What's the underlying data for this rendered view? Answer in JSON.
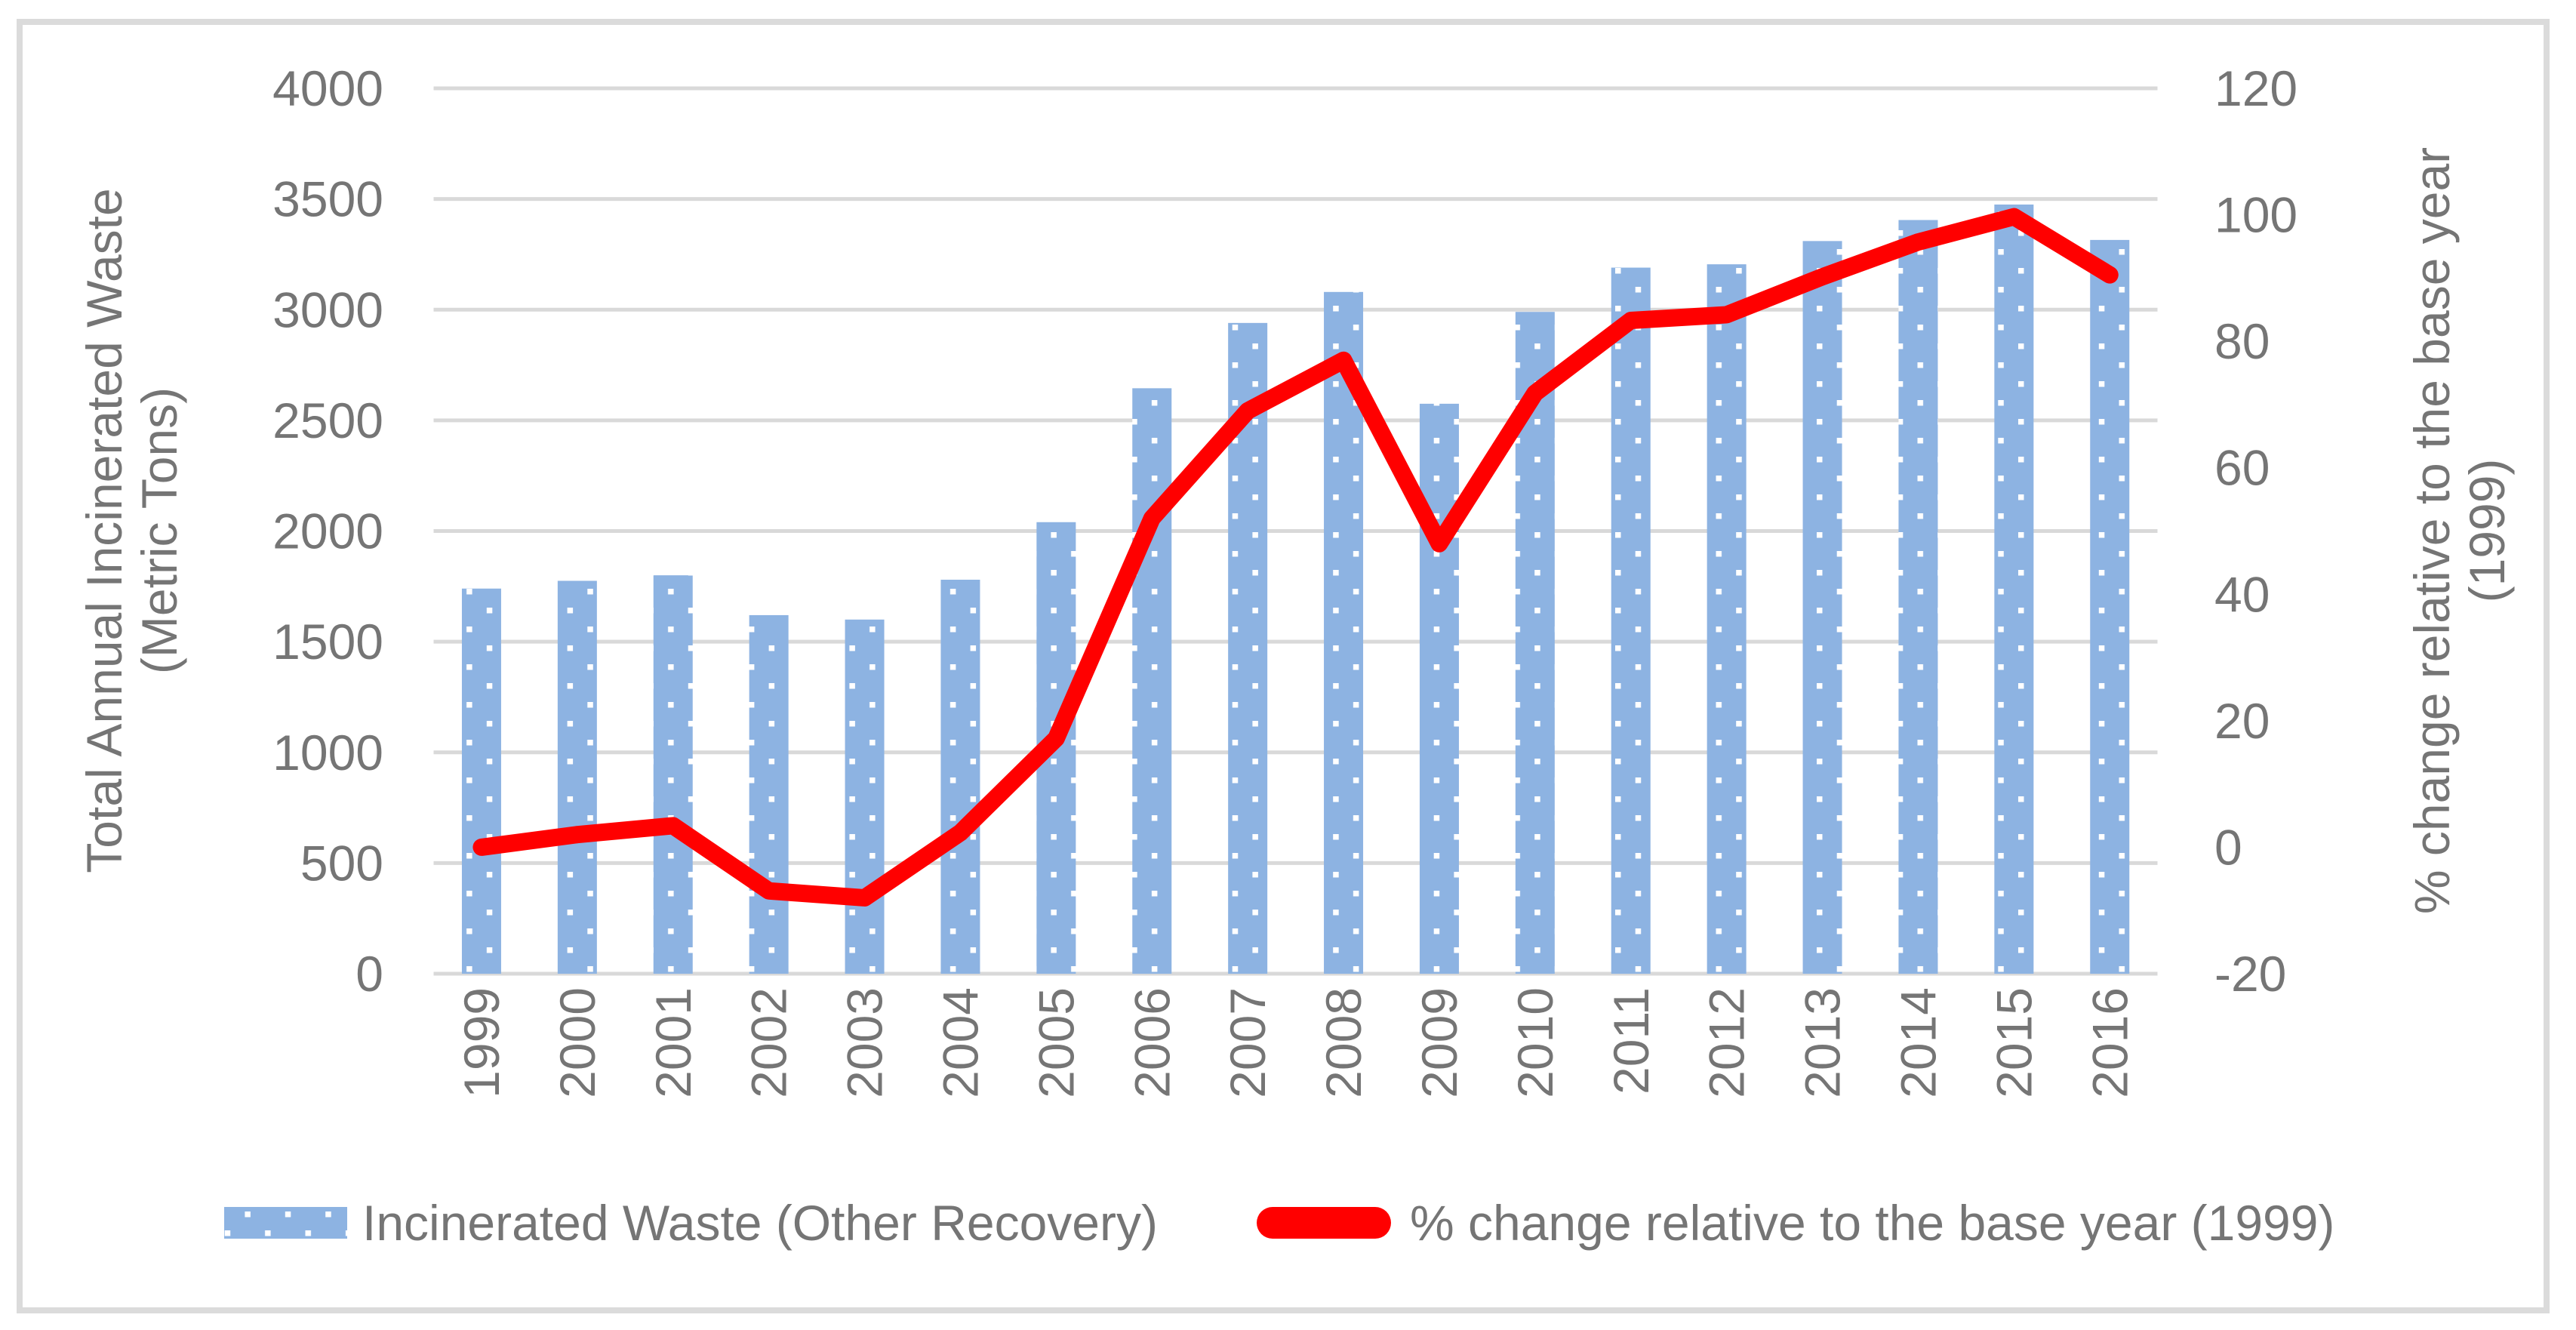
{
  "chart_data": {
    "type": "combo",
    "categories": [
      "1999",
      "2000",
      "2001",
      "2002",
      "2003",
      "2004",
      "2005",
      "2006",
      "2007",
      "2008",
      "2009",
      "2010",
      "2011",
      "2012",
      "2013",
      "2014",
      "2015",
      "2016"
    ],
    "series": [
      {
        "name": "Incinerated Waste (Other Recovery)",
        "type": "bar",
        "axis": "left",
        "color": "#8DB3E2",
        "pattern": "white-dots",
        "values": [
          1740,
          1775,
          1800,
          1620,
          1600,
          1780,
          2040,
          2645,
          2940,
          3080,
          2575,
          2990,
          3190,
          3205,
          3310,
          3405,
          3475,
          3315
        ]
      },
      {
        "name": "% change relative to the base year (1999)",
        "type": "line",
        "axis": "right",
        "color": "#FF0000",
        "values": [
          0,
          2.0,
          3.4,
          -6.9,
          -8.0,
          2.3,
          17.2,
          52.0,
          69.0,
          77.0,
          48.0,
          71.8,
          83.3,
          84.2,
          90.2,
          95.7,
          99.7,
          90.5
        ]
      }
    ],
    "left_axis": {
      "title_line1": "Total Annual Incinerated Waste",
      "title_line2": "(Metric Tons)",
      "min": 0,
      "max": 4000,
      "step": 500,
      "tick_labels": [
        "0",
        "500",
        "1000",
        "1500",
        "2000",
        "2500",
        "3000",
        "3500",
        "4000"
      ]
    },
    "right_axis": {
      "title_line1": "% change relative to the base year",
      "title_line2": "(1999)",
      "min": -20,
      "max": 120,
      "step": 20,
      "tick_labels": [
        "-20",
        "0",
        "20",
        "40",
        "60",
        "80",
        "100",
        "120"
      ]
    },
    "grid": true,
    "legend_position": "bottom",
    "colors": {
      "gridline": "#D9D9D9",
      "text": "#757575",
      "border": "#DBDBDB",
      "bar": "#8DB3E2",
      "line": "#FF0000"
    }
  }
}
